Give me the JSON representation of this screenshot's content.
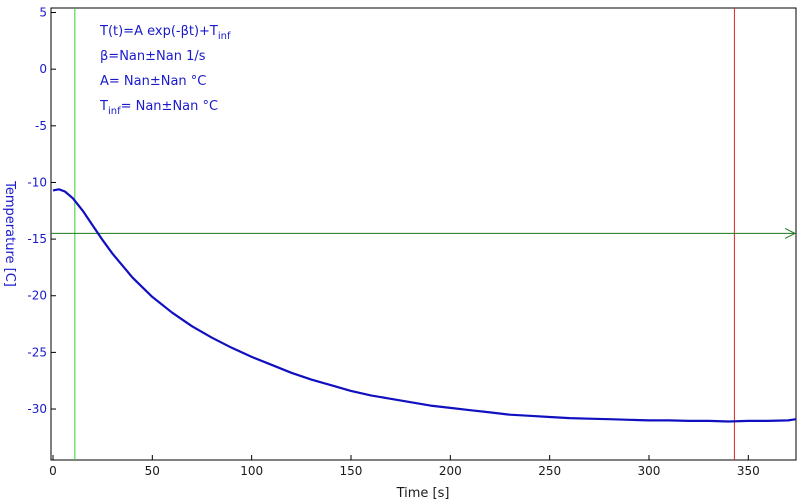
{
  "chart_data": {
    "type": "line",
    "xlabel": "Time [s]",
    "ylabel": "Temperature [C]",
    "xlim": [
      -1,
      374
    ],
    "ylim": [
      -34.5,
      5.4
    ],
    "xticks": [
      0,
      50,
      100,
      150,
      200,
      250,
      300,
      350
    ],
    "yticks": [
      5,
      0,
      -5,
      -10,
      -15,
      -20,
      -25,
      -30
    ],
    "grid": false,
    "colors": {
      "series": "#1010c0",
      "axis_text_y": "#1a1acc",
      "start_marker": "#33cc33",
      "end_marker": "#dd2222",
      "asymptote": "#1a7a1a",
      "frame": "#000000"
    },
    "markers": {
      "start_x": 11,
      "end_x": 343,
      "asymptote_y": -14.5
    },
    "fit_box": {
      "line1_main": "T(t)=A exp(-βt)+T",
      "line1_sub": "inf",
      "line2": "β=Nan±Nan 1/s",
      "line3": "A= Nan±Nan °C",
      "line4_pre": "T",
      "line4_sub": "inf",
      "line4_post": "= Nan±Nan °C"
    },
    "series": [
      {
        "points": [
          [
            0,
            -10.7
          ],
          [
            3,
            -10.6
          ],
          [
            6,
            -10.8
          ],
          [
            10,
            -11.4
          ],
          [
            15,
            -12.5
          ],
          [
            20,
            -13.8
          ],
          [
            25,
            -15.1
          ],
          [
            30,
            -16.3
          ],
          [
            40,
            -18.4
          ],
          [
            50,
            -20.1
          ],
          [
            60,
            -21.5
          ],
          [
            70,
            -22.7
          ],
          [
            80,
            -23.7
          ],
          [
            90,
            -24.6
          ],
          [
            100,
            -25.4
          ],
          [
            110,
            -26.1
          ],
          [
            120,
            -26.8
          ],
          [
            130,
            -27.4
          ],
          [
            140,
            -27.9
          ],
          [
            150,
            -28.4
          ],
          [
            160,
            -28.8
          ],
          [
            170,
            -29.1
          ],
          [
            180,
            -29.4
          ],
          [
            190,
            -29.7
          ],
          [
            200,
            -29.9
          ],
          [
            210,
            -30.1
          ],
          [
            220,
            -30.3
          ],
          [
            230,
            -30.5
          ],
          [
            240,
            -30.6
          ],
          [
            250,
            -30.7
          ],
          [
            260,
            -30.8
          ],
          [
            270,
            -30.85
          ],
          [
            280,
            -30.9
          ],
          [
            290,
            -30.95
          ],
          [
            300,
            -31.0
          ],
          [
            310,
            -31.0
          ],
          [
            320,
            -31.05
          ],
          [
            330,
            -31.05
          ],
          [
            340,
            -31.1
          ],
          [
            350,
            -31.05
          ],
          [
            360,
            -31.05
          ],
          [
            370,
            -31.0
          ],
          [
            374,
            -30.9
          ]
        ]
      }
    ]
  }
}
